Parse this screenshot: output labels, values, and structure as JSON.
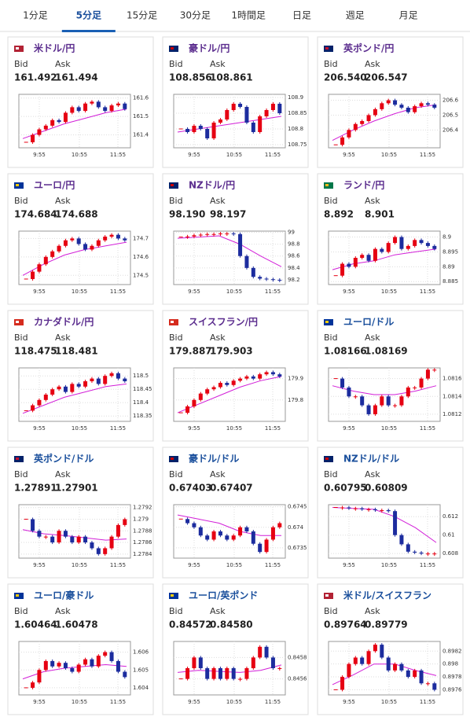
{
  "tabs": [
    "1分足",
    "5分足",
    "15分足",
    "30分足",
    "1時間足",
    "日足",
    "週足",
    "月足"
  ],
  "active_tab": 1,
  "bid_label": "Bid",
  "ask_label": "Ask",
  "time_labels": [
    "9:55",
    "10:55",
    "11:55"
  ],
  "up_color": "#e60012",
  "down_color": "#1c2c9e",
  "ma_color": "#d21fd8",
  "cards": [
    {
      "name": "米ドル/円",
      "bid": "161.492",
      "ask": "161.494",
      "ylim": [
        161.33,
        161.62
      ],
      "yticks": [
        161.4,
        161.5,
        161.6
      ],
      "closes": [
        161.36,
        161.4,
        161.43,
        161.45,
        161.48,
        161.47,
        161.52,
        161.55,
        161.53,
        161.57,
        161.58,
        161.55,
        161.53,
        161.56,
        161.57,
        161.54
      ],
      "ma": [
        161.38,
        161.42,
        161.46,
        161.49,
        161.52,
        161.54
      ]
    },
    {
      "name": "豪ドル/円",
      "bid": "108.856",
      "ask": "108.861",
      "ylim": [
        108.74,
        108.91
      ],
      "yticks": [
        108.75,
        108.8,
        108.85,
        108.9
      ],
      "closes": [
        108.8,
        108.79,
        108.81,
        108.8,
        108.77,
        108.82,
        108.83,
        108.86,
        108.88,
        108.87,
        108.82,
        108.79,
        108.84,
        108.86,
        108.88,
        108.85
      ],
      "ma": [
        108.79,
        108.8,
        108.81,
        108.82,
        108.83,
        108.84
      ]
    },
    {
      "name": "英ポンド/円",
      "bid": "206.540",
      "ask": "206.547",
      "ylim": [
        206.28,
        206.64
      ],
      "yticks": [
        206.4,
        206.5,
        206.6
      ],
      "closes": [
        206.3,
        206.35,
        206.4,
        206.44,
        206.46,
        206.5,
        206.54,
        206.58,
        206.6,
        206.57,
        206.55,
        206.52,
        206.56,
        206.58,
        206.57,
        206.55
      ],
      "ma": [
        206.33,
        206.4,
        206.46,
        206.51,
        206.55,
        206.57
      ]
    },
    {
      "name": "ユーロ/円",
      "bid": "174.684",
      "ask": "174.688",
      "ylim": [
        174.45,
        174.74
      ],
      "yticks": [
        174.5,
        174.6,
        174.7
      ],
      "closes": [
        174.48,
        174.52,
        174.56,
        174.6,
        174.63,
        174.66,
        174.69,
        174.7,
        174.67,
        174.64,
        174.66,
        174.69,
        174.71,
        174.72,
        174.7,
        174.69
      ],
      "ma": [
        174.5,
        174.56,
        174.61,
        174.64,
        174.66,
        174.68
      ]
    },
    {
      "name": "NZドル/円",
      "bid": "98.190",
      "ask": "98.197",
      "ylim": [
        98.12,
        99.02
      ],
      "yticks": [
        98.2,
        98.4,
        98.6,
        98.8,
        99
      ],
      "closes": [
        98.92,
        98.93,
        98.95,
        98.96,
        98.97,
        98.97,
        98.98,
        98.98,
        98.97,
        98.6,
        98.4,
        98.25,
        98.22,
        98.21,
        98.2,
        98.19
      ],
      "ma": [
        98.9,
        98.92,
        98.94,
        98.8,
        98.6,
        98.42
      ]
    },
    {
      "name": "ランド/円",
      "bid": "8.892",
      "ask": "8.901",
      "ylim": [
        8.884,
        8.902
      ],
      "yticks": [
        8.885,
        8.89,
        8.895,
        8.9
      ],
      "closes": [
        8.887,
        8.891,
        8.89,
        8.893,
        8.894,
        8.892,
        8.896,
        8.895,
        8.898,
        8.9,
        8.896,
        8.897,
        8.899,
        8.898,
        8.897,
        8.896
      ],
      "ma": [
        8.889,
        8.891,
        8.892,
        8.894,
        8.895,
        8.896
      ]
    },
    {
      "name": "カナダドル/円",
      "bid": "118.475",
      "ask": "118.481",
      "ylim": [
        118.33,
        118.53
      ],
      "yticks": [
        118.35,
        118.4,
        118.45,
        118.5
      ],
      "closes": [
        118.37,
        118.39,
        118.41,
        118.43,
        118.45,
        118.46,
        118.44,
        118.47,
        118.46,
        118.48,
        118.49,
        118.47,
        118.5,
        118.51,
        118.49,
        118.48
      ],
      "ma": [
        118.36,
        118.39,
        118.42,
        118.44,
        118.46,
        118.47
      ]
    },
    {
      "name": "スイスフラン/円",
      "bid": "179.887",
      "ask": "179.903",
      "ylim": [
        179.7,
        179.95
      ],
      "yticks": [
        179.8,
        179.9
      ],
      "closes": [
        179.74,
        179.77,
        179.8,
        179.83,
        179.85,
        179.86,
        179.88,
        179.87,
        179.89,
        179.9,
        179.91,
        179.9,
        179.92,
        179.93,
        179.92,
        179.91
      ],
      "ma": [
        179.74,
        179.78,
        179.82,
        179.86,
        179.89,
        179.91
      ]
    },
    {
      "name": "ユーロ/ドル",
      "bid": "1.08166",
      "ask": "1.08169",
      "ylim": [
        1.08112,
        1.08172
      ],
      "yticks": [
        1.0812,
        1.0814,
        1.0816
      ],
      "closes": [
        1.0816,
        1.0815,
        1.0814,
        1.0814,
        1.0813,
        1.0812,
        1.0813,
        1.0814,
        1.0813,
        1.0813,
        1.0814,
        1.0815,
        1.0815,
        1.0816,
        1.0817,
        1.0817
      ],
      "ma": [
        1.08152,
        1.08146,
        1.08142,
        1.08142,
        1.08146,
        1.08152
      ]
    },
    {
      "name": "英ポンド/ドル",
      "bid": "1.27891",
      "ask": "1.27901",
      "ylim": [
        1.27833,
        1.27925
      ],
      "yticks": [
        1.2784,
        1.2786,
        1.2788,
        1.279,
        1.2792
      ],
      "closes": [
        1.279,
        1.2788,
        1.2787,
        1.2787,
        1.2786,
        1.2788,
        1.2787,
        1.2786,
        1.2787,
        1.2786,
        1.2785,
        1.2784,
        1.2785,
        1.2787,
        1.2789,
        1.279
      ],
      "ma": [
        1.27882,
        1.27875,
        1.27872,
        1.27868,
        1.27864,
        1.27866
      ]
    },
    {
      "name": "豪ドル/ドル",
      "bid": "0.67403",
      "ask": "0.67407",
      "ylim": [
        0.67325,
        0.67455
      ],
      "yticks": [
        0.6735,
        0.674,
        0.6745
      ],
      "closes": [
        0.6742,
        0.6741,
        0.674,
        0.6738,
        0.6737,
        0.6739,
        0.6738,
        0.6737,
        0.6738,
        0.674,
        0.6739,
        0.6736,
        0.6734,
        0.6737,
        0.674,
        0.6741
      ],
      "ma": [
        0.6743,
        0.6742,
        0.6741,
        0.6739,
        0.6738,
        0.6738
      ]
    },
    {
      "name": "NZドル/ドル",
      "bid": "0.60795",
      "ask": "0.60809",
      "ylim": [
        0.6075,
        0.6133
      ],
      "yticks": [
        0.608,
        0.61,
        0.612
      ],
      "closes": [
        0.613,
        0.613,
        0.6129,
        0.6129,
        0.6128,
        0.6128,
        0.6127,
        0.6127,
        0.6126,
        0.61,
        0.609,
        0.6082,
        0.6081,
        0.608,
        0.608,
        0.608
      ],
      "ma": [
        0.613,
        0.6129,
        0.6128,
        0.612,
        0.6108,
        0.6092
      ]
    },
    {
      "name": "ユーロ/豪ドル",
      "bid": "1.60464",
      "ask": "1.60478",
      "ylim": [
        1.6036,
        1.6066
      ],
      "yticks": [
        1.604,
        1.605,
        1.606
      ],
      "closes": [
        1.604,
        1.6043,
        1.605,
        1.6055,
        1.6052,
        1.6054,
        1.6051,
        1.6049,
        1.6053,
        1.6056,
        1.6052,
        1.6058,
        1.606,
        1.6055,
        1.6049,
        1.6046
      ],
      "ma": [
        1.6045,
        1.6049,
        1.6051,
        1.6052,
        1.6053,
        1.6052
      ]
    },
    {
      "name": "ユーロ/英ポンド",
      "bid": "0.84572",
      "ask": "0.84580",
      "ylim": [
        0.84545,
        0.84595
      ],
      "yticks": [
        0.8456,
        0.8458
      ],
      "closes": [
        0.8456,
        0.8457,
        0.8458,
        0.8457,
        0.8456,
        0.8457,
        0.8456,
        0.8457,
        0.8456,
        0.8456,
        0.8457,
        0.8458,
        0.8459,
        0.8458,
        0.8457,
        0.8457
      ],
      "ma": [
        0.84566,
        0.84568,
        0.84567,
        0.84566,
        0.84568,
        0.84573
      ]
    },
    {
      "name": "米ドル/スイスフラン",
      "bid": "0.89764",
      "ask": "0.89779",
      "ylim": [
        0.89752,
        0.89835
      ],
      "yticks": [
        0.8976,
        0.8978,
        0.898,
        0.8982
      ],
      "closes": [
        0.8976,
        0.8978,
        0.898,
        0.8981,
        0.898,
        0.8982,
        0.8983,
        0.8981,
        0.8979,
        0.898,
        0.8979,
        0.8978,
        0.8979,
        0.8977,
        0.8977,
        0.8976
      ],
      "ma": [
        0.89768,
        0.89783,
        0.898,
        0.898,
        0.8979,
        0.89782
      ]
    }
  ]
}
